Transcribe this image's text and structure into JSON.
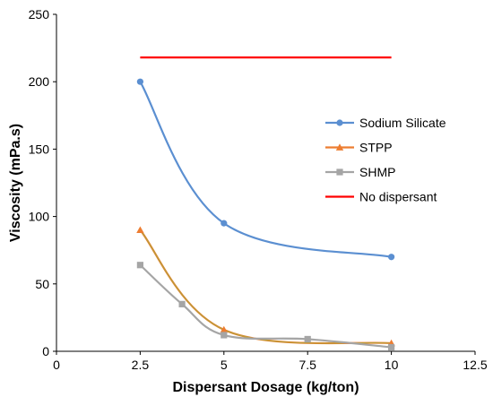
{
  "chart_data": {
    "type": "line",
    "title": "",
    "xlabel": "Dispersant Dosage (kg/ton)",
    "ylabel": "Viscosity (mPa.s)",
    "xlim": [
      0,
      12.5
    ],
    "ylim": [
      0,
      250
    ],
    "xticks": [
      0,
      2.5,
      5,
      7.5,
      10,
      12.5
    ],
    "xtick_labels": [
      "0",
      "2.5",
      "5",
      "7.5",
      "10",
      "12.5"
    ],
    "yticks": [
      0,
      50,
      100,
      150,
      200,
      250
    ],
    "ytick_labels": [
      "0",
      "50",
      "100",
      "150",
      "200",
      "250"
    ],
    "grid": false,
    "legend_position": "right",
    "series": [
      {
        "name": "Sodium Silicate",
        "color": "#5b8fd1",
        "marker": "circle",
        "smooth": true,
        "points": [
          [
            2.5,
            200
          ],
          [
            5,
            95
          ],
          [
            10,
            70
          ]
        ]
      },
      {
        "name": "STPP",
        "color": "#ed7d31",
        "marker": "triangle",
        "smooth": true,
        "points": [
          [
            2.5,
            90
          ],
          [
            5,
            16
          ],
          [
            10,
            6
          ]
        ]
      },
      {
        "name": "SHMP",
        "color": "#a5a5a5",
        "marker": "square",
        "smooth": true,
        "points": [
          [
            2.5,
            64
          ],
          [
            3.75,
            35
          ],
          [
            5,
            12
          ],
          [
            7.5,
            9
          ],
          [
            10,
            3
          ]
        ]
      },
      {
        "name": "No dispersant",
        "color": "#ff0000",
        "marker": "none",
        "smooth": false,
        "points": [
          [
            2.5,
            218
          ],
          [
            10,
            218
          ]
        ]
      }
    ],
    "overlay_color": "#b0a23a"
  }
}
